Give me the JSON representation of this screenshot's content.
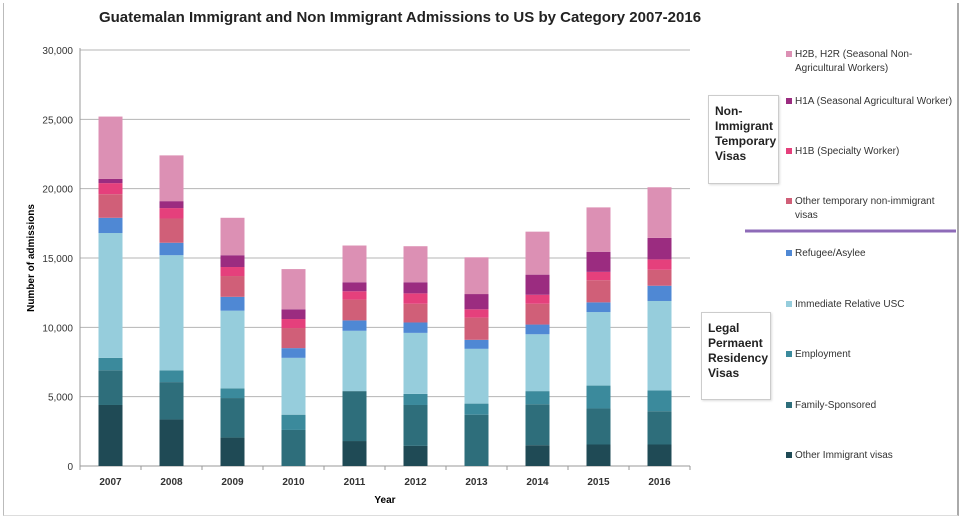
{
  "chart_data": {
    "type": "bar",
    "stacked": true,
    "title": "Guatemalan Immigrant and Non Immigrant Admissions to US by Category 2007-2016",
    "xlabel": "Year",
    "ylabel": "Number of admissions",
    "ylim": [
      0,
      30000
    ],
    "yticks": [
      "0",
      "5,000",
      "10,000",
      "15,000",
      "20,000",
      "25,000",
      "30,000"
    ],
    "grid": true,
    "legend": "right",
    "categories": [
      "2007",
      "2008",
      "2009",
      "2010",
      "2011",
      "2012",
      "2013",
      "2014",
      "2015",
      "2016"
    ],
    "series": [
      {
        "name": "Other Immigrant visas",
        "color": "#1f4a55",
        "values": [
          4400,
          3350,
          2050,
          0,
          1800,
          1450,
          0,
          1500,
          1550,
          1550
        ]
      },
      {
        "name": "Family-Sponsored",
        "color": "#2e6e7b",
        "values": [
          2500,
          2700,
          2850,
          2600,
          3600,
          2950,
          3700,
          2950,
          2600,
          2400
        ]
      },
      {
        "name": "Employment",
        "color": "#3b8a9c",
        "values": [
          900,
          850,
          700,
          1100,
          0,
          800,
          800,
          950,
          1650,
          1500
        ]
      },
      {
        "name": "Immediate Relative USC",
        "color": "#96cddc",
        "values": [
          9000,
          8300,
          5600,
          4100,
          4350,
          4400,
          3950,
          4100,
          5300,
          6450
        ]
      },
      {
        "name": "Refugee/Asylee",
        "color": "#4f88d4",
        "values": [
          1100,
          900,
          1000,
          700,
          750,
          750,
          650,
          700,
          700,
          1100
        ]
      },
      {
        "name": "Other temporary non-immigrant visas",
        "color": "#d05f78",
        "values": [
          1700,
          1750,
          1500,
          1450,
          1500,
          1350,
          1600,
          1500,
          1600,
          1150
        ]
      },
      {
        "name": "H1B (Specialty Worker)",
        "color": "#e5407c",
        "values": [
          800,
          750,
          650,
          650,
          600,
          750,
          600,
          650,
          600,
          750
        ]
      },
      {
        "name": "H1A (Seasonal Agricultural Worker)",
        "color": "#9b2c80",
        "values": [
          300,
          500,
          850,
          700,
          650,
          800,
          1100,
          1450,
          1450,
          1550
        ]
      },
      {
        "name": "H2B, H2R (Seasonal Non-Agricultural Workers)",
        "color": "#dc90b4",
        "values": [
          4500,
          3300,
          2700,
          2900,
          2650,
          2600,
          2650,
          3100,
          3200,
          3650
        ]
      }
    ],
    "annotations": [
      "Non-Immigrant Temporary Visas",
      "Legal Permaent Residency Visas"
    ],
    "divider_color": "#8e6bb8"
  }
}
